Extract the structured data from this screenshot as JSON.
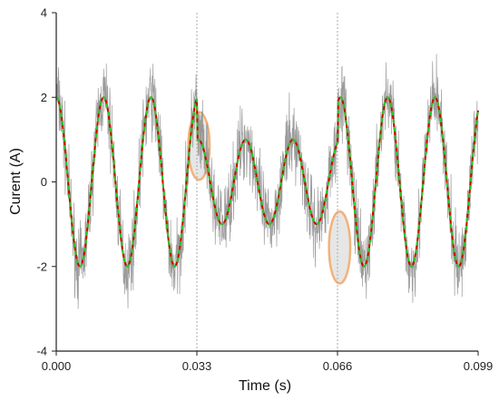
{
  "chart_data": {
    "type": "line",
    "title": "",
    "xlabel": "Time (s)",
    "ylabel": "Curent (A)",
    "xlim": [
      0,
      0.099
    ],
    "ylim": [
      -4,
      4
    ],
    "xticks": [
      "0.000",
      "0.033",
      "0.066",
      "0.099"
    ],
    "yticks": [
      "-4",
      "-2",
      "0",
      "2",
      "4"
    ],
    "vlines": [
      0.033,
      0.066
    ],
    "segments": [
      {
        "x_start": 0.0,
        "x_end": 0.033,
        "amplitude": 2,
        "frequency_hz": 90,
        "phase": 1.571
      },
      {
        "x_start": 0.033,
        "x_end": 0.066,
        "amplitude": 1,
        "frequency_hz": 90,
        "phase": 1.571
      },
      {
        "x_start": 0.066,
        "x_end": 0.099,
        "amplitude": 2,
        "frequency_hz": 90,
        "phase": 1.571
      }
    ],
    "series": [
      {
        "style": "noisy-measured",
        "color": "#8a8a8a",
        "noise_amplitude": 0.45
      },
      {
        "style": "solid",
        "color": "#cc0000"
      },
      {
        "style": "dashed",
        "color": "#22cc22"
      }
    ],
    "highlights": [
      {
        "x": 0.0335,
        "y": 0.85,
        "x_radius": 0.0025,
        "y_radius": 0.8
      },
      {
        "x": 0.0665,
        "y": -1.55,
        "x_radius": 0.0025,
        "y_radius": 0.85
      }
    ],
    "colors": {
      "highlight_fill": "#e6e6e6",
      "highlight_stroke": "#f2b27a",
      "axis": "#222222",
      "vline": "#aaaaaa"
    },
    "grid": false,
    "legend": "none"
  }
}
